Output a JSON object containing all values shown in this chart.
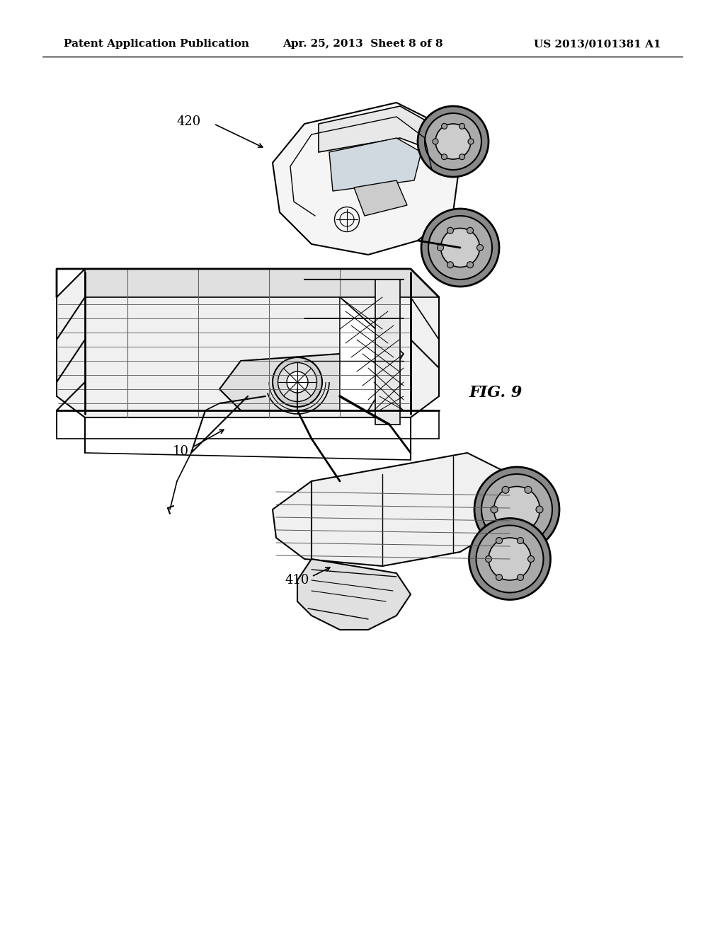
{
  "header_left": "Patent Application Publication",
  "header_center": "Apr. 25, 2013  Sheet 8 of 8",
  "header_right": "US 2013/0101381 A1",
  "fig_label": "FIG. 9",
  "label_420": "420",
  "label_410": "410",
  "label_10": "10",
  "bg_color": "#ffffff",
  "line_color": "#000000",
  "header_fontsize": 11,
  "label_fontsize": 13,
  "fig_label_fontsize": 16,
  "page_width": 10.24,
  "page_height": 13.2
}
